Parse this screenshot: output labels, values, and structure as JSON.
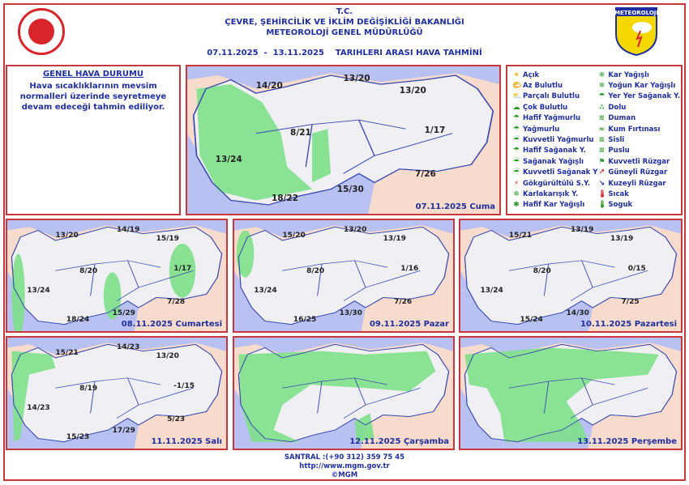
{
  "header": {
    "line1": "T.C.",
    "line2": "ÇEVRE, ŞEHİRCİLİK VE İKLİM DEĞİŞİKLİĞİ BAKANLIĞI",
    "line3": "METEOROLOJİ GENEL MÜDÜRLÜĞÜ",
    "dates": "07.11.2025  -  13.11.2025    TARIHLERI ARASI HAVA TAHMİNİ",
    "logo_text": "METEOROLOJI"
  },
  "general": {
    "title": "GENEL HAVA DURUMU",
    "text": "Hava sıcaklıklarının mevsim normalleri üzerinde seyretmeye devam edeceği tahmin ediliyor."
  },
  "legend": [
    {
      "label": "Açık",
      "icon": "sun-icon"
    },
    {
      "label": "Az Bulutlu",
      "icon": "sun-small-cloud-icon"
    },
    {
      "label": "Parçalı Bulutlu",
      "icon": "partly-cloudy-icon"
    },
    {
      "label": "Çok Bulutlu",
      "icon": "cloudy-icon"
    },
    {
      "label": "Hafif Yağmurlu",
      "icon": "light-rain-icon"
    },
    {
      "label": "Yağmurlu",
      "icon": "rain-icon"
    },
    {
      "label": "Kuvvetli Yağmurlu",
      "icon": "heavy-rain-icon"
    },
    {
      "label": "Hafif Sağanak Y.",
      "icon": "light-shower-icon"
    },
    {
      "label": "Sağanak Yağışlı",
      "icon": "shower-icon"
    },
    {
      "label": "Kuvvetli Sağanak Y",
      "icon": "heavy-shower-icon"
    },
    {
      "label": "Gökgürültülü S.Y.",
      "icon": "thunderstorm-icon"
    },
    {
      "label": "Karlakarışık Y.",
      "icon": "sleet-icon"
    },
    {
      "label": "Hafif Kar Yağışlı",
      "icon": "light-snow-icon"
    },
    {
      "label": "Kar Yağışlı",
      "icon": "snow-icon"
    },
    {
      "label": "Yoğun Kar Yağışlı",
      "icon": "heavy-snow-icon"
    },
    {
      "label": "Yer Yer Sağanak Y.",
      "icon": "scattered-shower-icon"
    },
    {
      "label": "Dolu",
      "icon": "hail-icon"
    },
    {
      "label": "Duman",
      "icon": "smoke-icon"
    },
    {
      "label": "Kum Fırtınası",
      "icon": "sandstorm-icon"
    },
    {
      "label": "Sisli",
      "icon": "fog-icon"
    },
    {
      "label": "Puslu",
      "icon": "mist-icon"
    },
    {
      "label": "Kuvvetli Rüzgar",
      "icon": "strong-wind-icon"
    },
    {
      "label": "Güneyli Rüzgar",
      "icon": "south-wind-arrow-icon"
    },
    {
      "label": "Kuzeyli Rüzgar",
      "icon": "north-wind-arrow-icon"
    },
    {
      "label": "Sıcak",
      "icon": "hot-thermometer-icon"
    },
    {
      "label": "Soguk",
      "icon": "cold-thermometer-icon"
    }
  ],
  "maps": [
    {
      "day": "07.11.2025 Cuma",
      "temps": [
        "14/20",
        "13/20",
        "13/20",
        "8/21",
        "1/17",
        "13/24",
        "7/26",
        "15/30",
        "18/22"
      ]
    },
    {
      "day": "08.11.2025 Cumartesi",
      "temps": [
        "13/20",
        "14/19",
        "15/19",
        "8/20",
        "1/17",
        "13/24",
        "7/28",
        "15/29",
        "18/24"
      ]
    },
    {
      "day": "09.11.2025 Pazar",
      "temps": [
        "15/20",
        "13/20",
        "13/19",
        "8/20",
        "1/16",
        "13/24",
        "7/26",
        "13/30",
        "16/25"
      ]
    },
    {
      "day": "10.11.2025 Pazartesi",
      "temps": [
        "15/21",
        "13/19",
        "13/19",
        "8/20",
        "0/15",
        "13/24",
        "7/25",
        "14/30",
        "15/24"
      ]
    },
    {
      "day": "11.11.2025 Salı",
      "temps": [
        "15/21",
        "14/23",
        "13/20",
        "8/19",
        "-1/15",
        "14/23",
        "5/23",
        "17/29",
        "15/23"
      ]
    },
    {
      "day": "12.11.2025 Çarşamba",
      "temps": []
    },
    {
      "day": "13.11.2025 Perşembe",
      "temps": []
    }
  ],
  "footer": {
    "phone": "SANTRAL :(+90 312) 359 75 45",
    "url": "http://www.mgm.gov.tr",
    "copyright": "©MGM"
  },
  "colors": {
    "border": "#c8373c",
    "text": "#1f2fa0",
    "sea": "#b9c1f2",
    "land": "#efeff4",
    "rain_area": "#7ee08a",
    "outside": "#f7dccd"
  }
}
